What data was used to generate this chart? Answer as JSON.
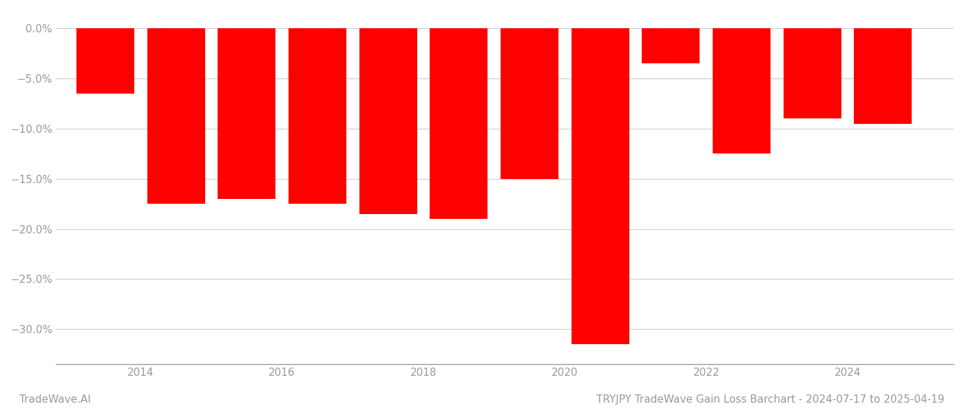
{
  "bar_centers": [
    2013.5,
    2014.5,
    2015.5,
    2016.5,
    2017.5,
    2018.5,
    2019.5,
    2020.5,
    2021.5,
    2022.5,
    2023.5,
    2024.5
  ],
  "bar_values": [
    -6.5,
    -17.5,
    -17.0,
    -17.5,
    -18.5,
    -19.0,
    -15.0,
    -31.5,
    -3.5,
    -12.5,
    -9.0,
    -9.5
  ],
  "bar_color": "#ff0000",
  "background_color": "#ffffff",
  "yticks": [
    0.0,
    -5.0,
    -10.0,
    -15.0,
    -20.0,
    -25.0,
    -30.0
  ],
  "xticks": [
    2014,
    2016,
    2018,
    2020,
    2022,
    2024
  ],
  "xlim": [
    2012.8,
    2025.5
  ],
  "ylim": [
    -33.5,
    1.8
  ],
  "bar_width": 0.82,
  "title": "TRYJPY TradeWave Gain Loss Barchart - 2024-07-17 to 2025-04-19",
  "watermark": "TradeWave.AI",
  "grid_color": "#cccccc",
  "tick_color": "#999999",
  "title_fontsize": 11,
  "watermark_fontsize": 11,
  "axis_fontsize": 11
}
